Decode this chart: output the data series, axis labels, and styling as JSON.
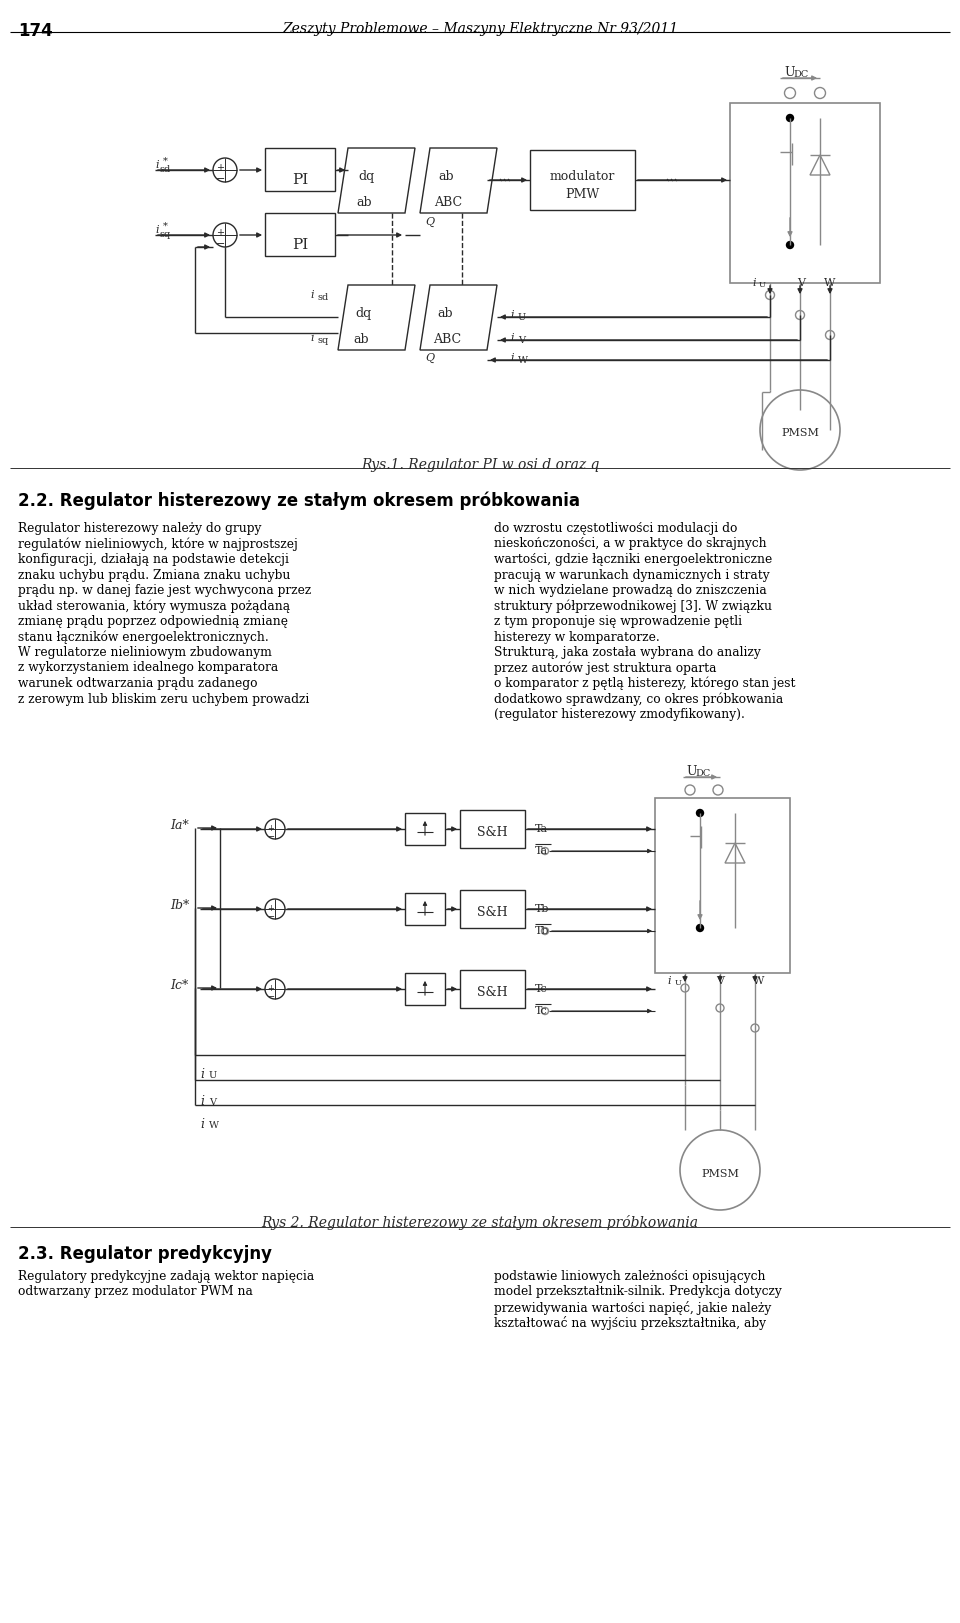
{
  "page_number": "174",
  "header_title": "Zeszyty Problemowe – Maszyny Elektryczne Nr 93/2011",
  "fig1_caption": "Rys.1. Regulator PI w osi d oraz q",
  "fig2_caption": "Rys 2. Regulator histerezowy ze stałym okresem próbkowania",
  "section_heading": "2.2. Regulator histerezowy ze stałym okresem próbkowania",
  "section2_heading": "2.3. Regulator predykcyjny",
  "left_col_lines": [
    "Regulator histerezowy należy do grupy",
    "regulatów nieliniowych, które w najprostszej",
    "konfiguracji, działają na podstawie detekcji",
    "znaku uchybu prądu. Zmiana znaku uchybu",
    "prądu np. w danej fazie jest wychwycona przez",
    "układ sterowania, który wymusza pożądaną",
    "zmianę prądu poprzez odpowiednią zmianę",
    "stanu łączników energoelektronicznych.",
    "W regulatorze nieliniowym zbudowanym",
    "z wykorzystaniem idealnego komparatora",
    "warunek odtwarzania prądu zadanego",
    "z zerowym lub bliskim zeru uchybem prowadzi"
  ],
  "right_col_lines": [
    "do wzrostu częstotliwości modulacji do",
    "nieskończoności, a w praktyce do skrajnych",
    "wartości, gdzie łączniki energoelektroniczne",
    "pracują w warunkach dynamicznych i straty",
    "w nich wydzielane prowadzą do zniszczenia",
    "struktury półprzewodnikowej [3]. W związku",
    "z tym proponuje się wprowadzenie pętli",
    "histerezy w komparatorze.",
    "Strukturą, jaka została wybrana do analizy",
    "przez autorów jest struktura oparta",
    "o komparator z pętlą histerezy, którego stan jest",
    "dodatkowo sprawdzany, co okres próbkowania",
    "(regulator histerezowy zmodyfikowany)."
  ],
  "left_col2_lines": [
    "Regulatory predykcyjne zadają wektor napięcia",
    "odtwarzany przez modulator PWM na"
  ],
  "right_col2_lines": [
    "podstawie liniowych zależności opisujących",
    "model przekształtnik-silnik. Predykcja dotyczy",
    "przewidywania wartości napięć, jakie należy",
    "kształtować na wyjściu przekształtnika, aby"
  ],
  "lc": "#2a2a2a",
  "bg": "#ffffff"
}
